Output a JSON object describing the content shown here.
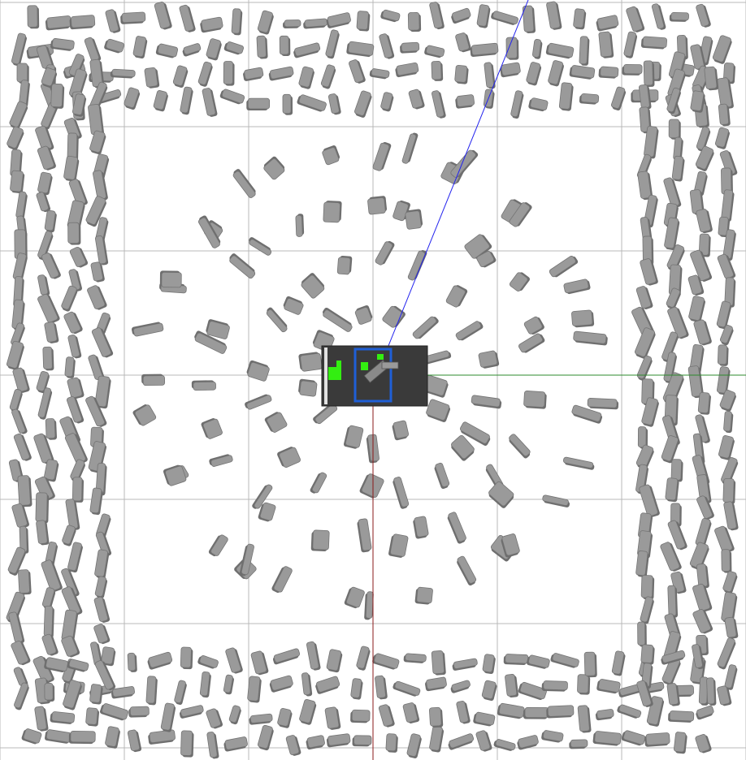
{
  "scene": {
    "view_type": "top-down 3D simulation viewport",
    "background_color": "#ffffff",
    "grid_color": "#b9b9b9",
    "object_color": "#9a9a9a",
    "object_edge_color": "#747474",
    "robot": {
      "base_color": "#3a3a3a",
      "sensor_frame_color": "#1f5fd6",
      "marker_color": "#33ee11",
      "rail_color": "#ffffff"
    },
    "axes": {
      "x_axis_color": "#2e8b2e",
      "y_axis_color": "#8b1a1a",
      "ray_color": "#2222ee"
    },
    "layout": {
      "ring_counts": [
        14,
        20,
        28,
        36
      ],
      "outer_rows_per_side": 4
    }
  }
}
